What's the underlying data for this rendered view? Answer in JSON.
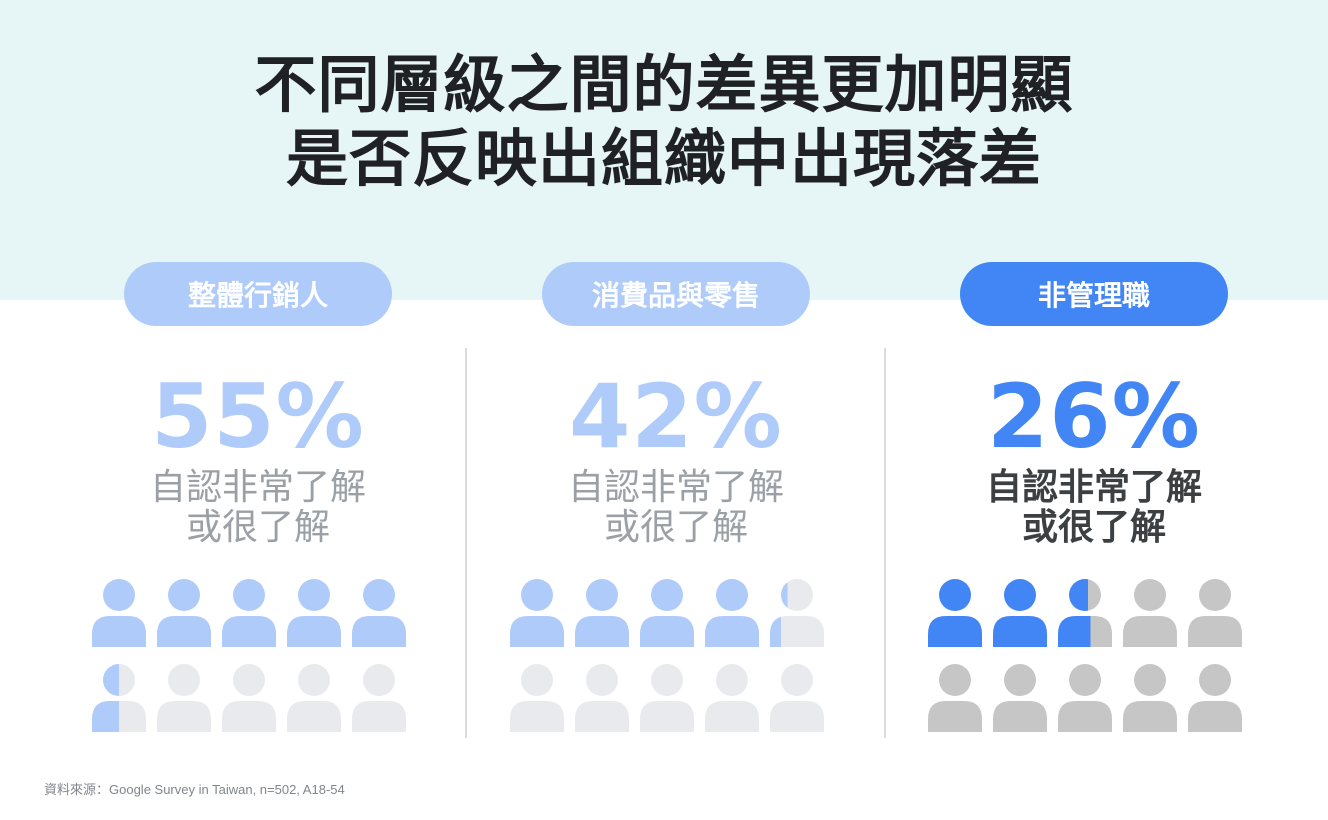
{
  "header": {
    "title_line1": "不同層級之間的差異更加明顯",
    "title_line2": "是否反映出組織中出現落差"
  },
  "colors": {
    "header_bg": "#e6f6f6",
    "light_blue": "#aecbfa",
    "strong_blue": "#4285f4",
    "person_grey_light": "#e8eaed",
    "person_grey": "#c6c6c6",
    "text_grey": "#9aa0a6",
    "text_dark": "#3c4043"
  },
  "chart_data": {
    "type": "pictograph",
    "icons_per_group": 10,
    "groups": [
      {
        "label": "整體行銷人",
        "value": 55,
        "value_label": "55%",
        "desc_line1": "自認非常了解",
        "desc_line2": "或很了解",
        "highlight": false
      },
      {
        "label": "消費品與零售",
        "value": 42,
        "value_label": "42%",
        "desc_line1": "自認非常了解",
        "desc_line2": "或很了解",
        "highlight": false
      },
      {
        "label": "非管理職",
        "value": 26,
        "value_label": "26%",
        "desc_line1": "自認非常了解",
        "desc_line2": "或很了解",
        "highlight": true
      }
    ]
  },
  "footer": {
    "source": "資料來源：Google Survey in Taiwan, n=502, A18-54"
  }
}
